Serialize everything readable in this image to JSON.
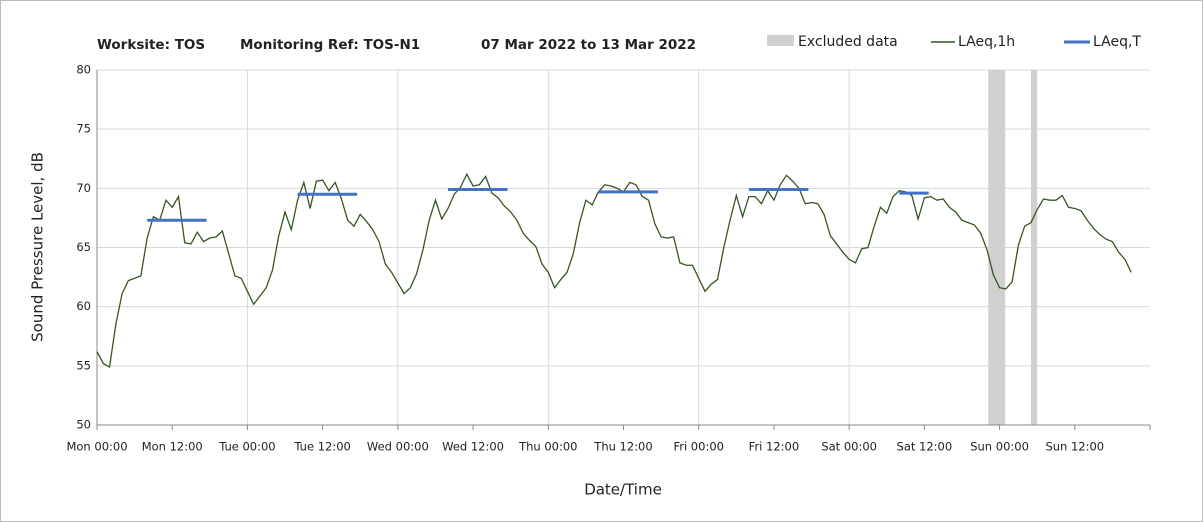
{
  "chart_data": {
    "type": "line",
    "title": [
      "Worksite: TOS",
      "Monitoring Ref: TOS-N1",
      "07 Mar 2022 to 13 Mar 2022"
    ],
    "x_label": "Date/Time",
    "y_label": "Sound Pressure Level, dB",
    "xlim": [
      0,
      168
    ],
    "ylim": [
      50,
      80
    ],
    "xticks": [
      {
        "value": 0,
        "label": "Mon 00:00"
      },
      {
        "value": 12,
        "label": "Mon 12:00"
      },
      {
        "value": 24,
        "label": "Tue 00:00"
      },
      {
        "value": 36,
        "label": "Tue 12:00"
      },
      {
        "value": 48,
        "label": "Wed 00:00"
      },
      {
        "value": 60,
        "label": "Wed 12:00"
      },
      {
        "value": 72,
        "label": "Thu 00:00"
      },
      {
        "value": 84,
        "label": "Thu 12:00"
      },
      {
        "value": 96,
        "label": "Fri 00:00"
      },
      {
        "value": 108,
        "label": "Fri 12:00"
      },
      {
        "value": 120,
        "label": "Sat 00:00"
      },
      {
        "value": 132,
        "label": "Sat 12:00"
      },
      {
        "value": 144,
        "label": "Sun 00:00"
      },
      {
        "value": 156,
        "label": "Sun 12:00"
      }
    ],
    "yticks": [
      50,
      55,
      60,
      65,
      70,
      75,
      80
    ],
    "grid": true,
    "excluded": {
      "name": "Excluded data",
      "color": "#d0d0d0",
      "ranges": [
        [
          142.2,
          144.9
        ],
        [
          149,
          150
        ]
      ]
    },
    "series": [
      {
        "name": "LAeq,1h",
        "color": "#375623",
        "x": [
          0,
          1,
          2,
          3,
          4,
          5,
          6,
          7,
          8,
          9,
          10,
          11,
          12,
          13,
          14,
          15,
          16,
          17,
          18,
          19,
          20,
          21,
          22,
          23,
          24,
          25,
          26,
          27,
          28,
          29,
          30,
          31,
          32,
          33,
          34,
          35,
          36,
          37,
          38,
          39,
          40,
          41,
          42,
          43,
          44,
          45,
          46,
          47,
          48,
          49,
          50,
          51,
          52,
          53,
          54,
          55,
          56,
          57,
          58,
          59,
          60,
          61,
          62,
          63,
          64,
          65,
          66,
          67,
          68,
          69,
          70,
          71,
          72,
          73,
          74,
          75,
          76,
          77,
          78,
          79,
          80,
          81,
          82,
          83,
          84,
          85,
          86,
          87,
          88,
          89,
          90,
          91,
          92,
          93,
          94,
          95,
          96,
          97,
          98,
          99,
          100,
          101,
          102,
          103,
          104,
          105,
          106,
          107,
          108,
          109,
          110,
          111,
          112,
          113,
          114,
          115,
          116,
          117,
          118,
          119,
          120,
          121,
          122,
          123,
          124,
          125,
          126,
          127,
          128,
          129,
          130,
          131,
          132,
          133,
          134,
          135,
          136,
          137,
          138,
          139,
          140,
          141,
          142,
          143,
          144,
          145,
          146,
          147,
          148,
          149,
          150,
          151,
          152,
          153,
          154,
          155,
          156,
          157,
          158,
          159,
          160,
          161,
          162,
          163,
          164,
          165
        ],
        "values": [
          56.2,
          55.2,
          54.9,
          58.5,
          61.1,
          62.2,
          62.4,
          62.6,
          65.8,
          67.6,
          67.3,
          69.0,
          68.4,
          69.3,
          65.4,
          65.3,
          66.3,
          65.5,
          65.8,
          65.9,
          66.4,
          64.5,
          62.6,
          62.4,
          61.3,
          60.2,
          60.9,
          61.6,
          63.1,
          66.0,
          68.0,
          66.5,
          69.0,
          70.5,
          68.3,
          70.6,
          70.7,
          69.8,
          70.5,
          69.1,
          67.3,
          66.8,
          67.8,
          67.2,
          66.5,
          65.5,
          63.6,
          62.9,
          62.0,
          61.1,
          61.6,
          62.8,
          64.8,
          67.3,
          69.0,
          67.4,
          68.3,
          69.5,
          70.1,
          71.2,
          70.2,
          70.3,
          71.0,
          69.6,
          69.2,
          68.5,
          68.0,
          67.3,
          66.2,
          65.6,
          65.1,
          63.6,
          62.9,
          61.6,
          62.3,
          62.9,
          64.5,
          67.1,
          69.0,
          68.6,
          69.7,
          70.3,
          70.2,
          70.0,
          69.7,
          70.5,
          70.3,
          69.3,
          69.0,
          67.0,
          65.9,
          65.8,
          65.9,
          63.7,
          63.5,
          63.5,
          62.4,
          61.3,
          61.9,
          62.3,
          65.0,
          67.3,
          69.4,
          67.6,
          69.3,
          69.3,
          68.7,
          69.8,
          69.0,
          70.3,
          71.1,
          70.6,
          70.0,
          68.7,
          68.8,
          68.7,
          67.8,
          66.0,
          65.3,
          64.6,
          64.0,
          63.7,
          64.9,
          65.0,
          66.8,
          68.4,
          67.9,
          69.3,
          69.8,
          69.7,
          69.4,
          67.4,
          69.2,
          69.3,
          69.0,
          69.1,
          68.4,
          68.0,
          67.3,
          67.1,
          66.9,
          66.2,
          64.8,
          62.7,
          61.6,
          61.5,
          62.1,
          65.2,
          66.8,
          67.1,
          68.2,
          69.1,
          69.0,
          69.0,
          69.4,
          68.4,
          68.3,
          68.1,
          67.3,
          66.6,
          66.1,
          65.7,
          65.5,
          64.6,
          64.0,
          62.9
        ]
      },
      {
        "name": "LAeq,T",
        "color": "#4472c4",
        "x": [
          [
            8,
            17.5
          ],
          [
            32,
            41.5
          ],
          [
            56,
            65.5
          ],
          [
            80,
            89.5
          ],
          [
            104,
            113.5
          ],
          [
            128,
            132.7
          ]
        ],
        "values": [
          67.3,
          69.5,
          69.9,
          69.7,
          69.9,
          69.6
        ]
      }
    ]
  }
}
